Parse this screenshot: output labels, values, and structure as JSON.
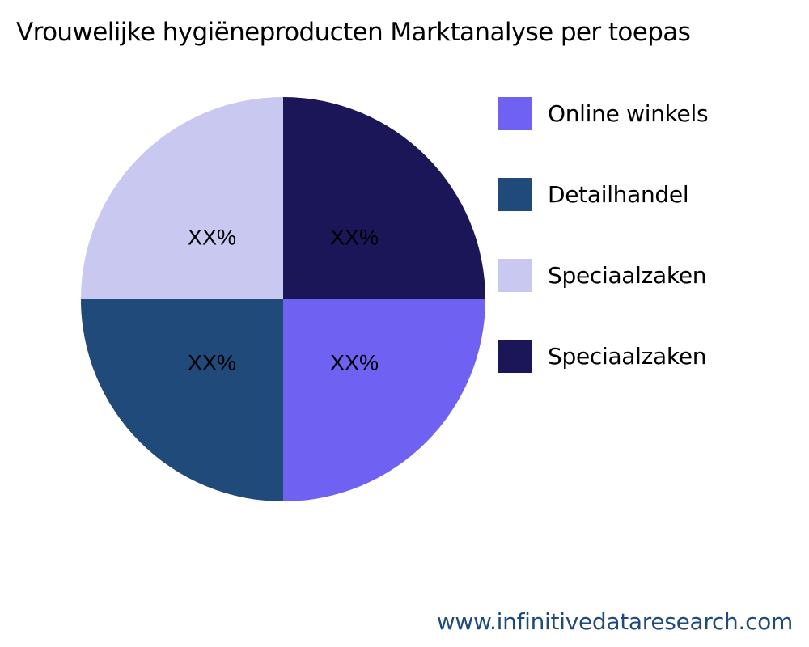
{
  "chart_data": {
    "type": "pie",
    "title": "Vrouwelijke hygiëneproducten Marktanalyse per toepas",
    "legend_position": "right",
    "slices": [
      {
        "label": "Online winkels",
        "value": 25,
        "display": "XX%",
        "color": "#6f61f2"
      },
      {
        "label": "Detailhandel",
        "value": 25,
        "display": "XX%",
        "color": "#1f4a7a"
      },
      {
        "label": "Speciaalzaken",
        "value": 25,
        "display": "XX%",
        "color": "#c8c8f0"
      },
      {
        "label": "Speciaalzaken",
        "value": 25,
        "display": "XX%",
        "color": "#1b1657"
      }
    ]
  },
  "footer": "www.infinitivedataresearch.com"
}
